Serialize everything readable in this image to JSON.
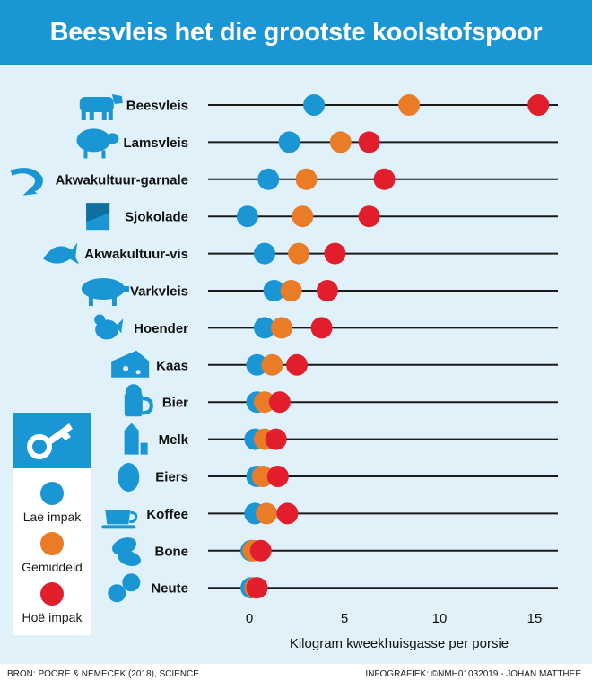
{
  "title": "Beesvleis het die grootste koolstofspoor",
  "legend": {
    "items": [
      {
        "label": "Lae impak",
        "color": "#1a96d4"
      },
      {
        "label": "Gemiddeld",
        "color": "#ea7b27"
      },
      {
        "label": "Hoë impak",
        "color": "#e31e2c"
      }
    ]
  },
  "footer": {
    "source": "BRON: POORE & NEMECEK (2018), SCIENCE",
    "credit": "INFOGRAFIEK: ©NMH01032019 - JOHAN MATTHEE"
  },
  "chart_data": {
    "type": "scatter",
    "title": "Beesvleis het die grootste koolstofspoor",
    "xlabel": "Kilogram kweekhuisgasse per porsie",
    "ylabel": "",
    "xlim": [
      0,
      17
    ],
    "xticks": [
      0,
      5,
      10,
      15
    ],
    "grid": false,
    "legend_position": "left",
    "categories": [
      "Beesvleis",
      "Lamsvleis",
      "Akwakultuur-garnale",
      "Sjokolade",
      "Akwakultuur-vis",
      "Varkvleis",
      "Hoender",
      "Kaas",
      "Bier",
      "Melk",
      "Eiers",
      "Koffee",
      "Bone",
      "Neute"
    ],
    "icons": [
      "cow-icon",
      "sheep-icon",
      "shrimp-icon",
      "chocolate-icon",
      "fish-icon",
      "pig-icon",
      "chicken-icon",
      "cheese-icon",
      "beer-icon",
      "milk-icon",
      "egg-icon",
      "coffee-icon",
      "beans-icon",
      "peanut-icon"
    ],
    "series": [
      {
        "name": "Lae impak",
        "color": "#1a96d4",
        "values": [
          3.4,
          2.1,
          1.0,
          -0.1,
          0.8,
          1.3,
          0.8,
          0.4,
          0.4,
          0.3,
          0.4,
          0.3,
          0.1,
          0.1
        ]
      },
      {
        "name": "Gemiddeld",
        "color": "#ea7b27",
        "values": [
          8.4,
          4.8,
          3.0,
          2.8,
          2.6,
          2.2,
          1.7,
          1.2,
          0.8,
          0.8,
          0.7,
          0.9,
          0.2,
          0.3
        ]
      },
      {
        "name": "Hoë impak",
        "color": "#e31e2c",
        "values": [
          15.2,
          6.3,
          7.1,
          6.3,
          4.5,
          4.1,
          3.8,
          2.5,
          1.6,
          1.4,
          1.5,
          2.0,
          0.6,
          0.4
        ]
      }
    ]
  }
}
